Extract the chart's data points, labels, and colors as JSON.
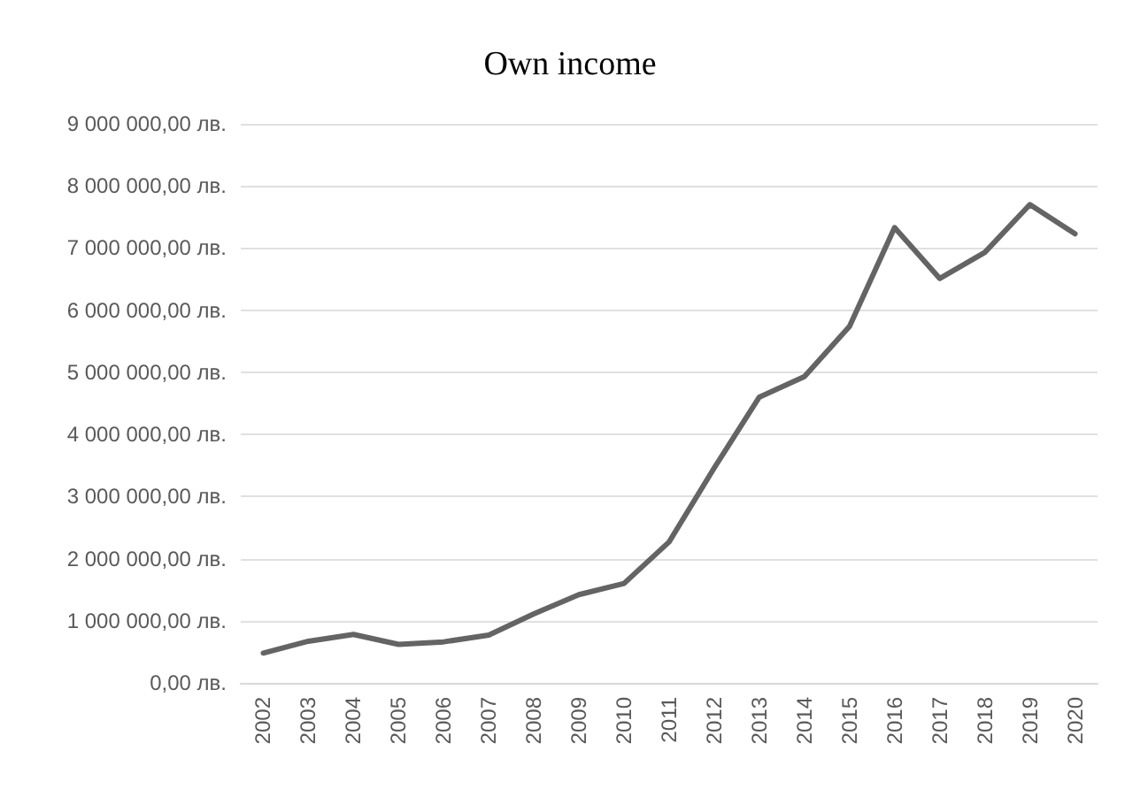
{
  "chart_data": {
    "type": "line",
    "title": "Own income",
    "categories": [
      "2002",
      "2003",
      "2004",
      "2005",
      "2006",
      "2007",
      "2008",
      "2009",
      "2010",
      "2011",
      "2012",
      "2013",
      "2014",
      "2015",
      "2016",
      "2017",
      "2018",
      "2019",
      "2020"
    ],
    "series": [
      {
        "color": "#646464",
        "values": [
          480000,
          670000,
          780000,
          620000,
          660000,
          770000,
          1110000,
          1420000,
          1600000,
          2270000,
          3460000,
          4600000,
          4930000,
          5740000,
          7330000,
          6510000,
          6930000,
          7700000,
          7230000
        ]
      }
    ],
    "ylim": [
      0,
      9000000
    ],
    "yticks": [
      {
        "value": 0,
        "label": "0,00 лв."
      },
      {
        "value": 1000000,
        "label": "1 000 000,00 лв."
      },
      {
        "value": 2000000,
        "label": "2 000 000,00 лв."
      },
      {
        "value": 3000000,
        "label": "3 000 000,00 лв."
      },
      {
        "value": 4000000,
        "label": "4 000 000,00 лв."
      },
      {
        "value": 5000000,
        "label": "5 000 000,00 лв."
      },
      {
        "value": 6000000,
        "label": "6 000 000,00 лв."
      },
      {
        "value": 7000000,
        "label": "7 000 000,00 лв."
      },
      {
        "value": 8000000,
        "label": "8 000 000,00 лв."
      },
      {
        "value": 9000000,
        "label": "9 000 000,00 лв."
      }
    ],
    "grid": "y",
    "marker": "none",
    "line_style": "solid"
  }
}
